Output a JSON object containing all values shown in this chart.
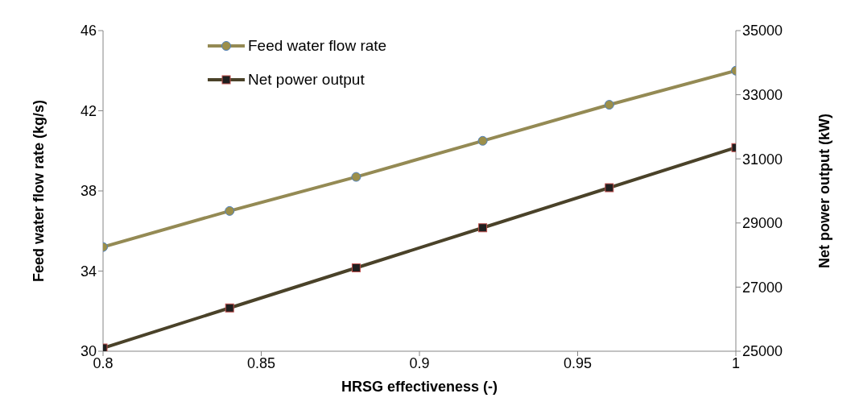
{
  "chart_data": {
    "type": "line",
    "xlabel": "HRSG effectiveness (-)",
    "ylabel": "Feed water flow rate (kg/s)",
    "y2label": "Net power output (kW)",
    "x": [
      0.8,
      0.84,
      0.88,
      0.92,
      0.96,
      1.0
    ],
    "series": [
      {
        "name": "Feed water flow rate",
        "color": "#948a54",
        "marker": "circle",
        "values": [
          35.2,
          37.0,
          38.7,
          40.5,
          42.3,
          44.0
        ]
      },
      {
        "name": "Net power output",
        "color": "#4a4229",
        "marker": "square",
        "axis": "y2",
        "values": [
          25100,
          26350,
          27600,
          28850,
          30100,
          31350
        ]
      }
    ],
    "xlim": [
      0.8,
      1
    ],
    "xticks": [
      0.8,
      0.85,
      0.9,
      0.95,
      1
    ],
    "ylim": [
      30,
      46
    ],
    "yticks": [
      30,
      34,
      38,
      42,
      46
    ],
    "y2lim": [
      25000,
      35000
    ],
    "y2ticks": [
      25000,
      27000,
      29000,
      31000,
      33000,
      35000
    ],
    "grid": false,
    "legend": "top left",
    "line_style": "solid"
  }
}
